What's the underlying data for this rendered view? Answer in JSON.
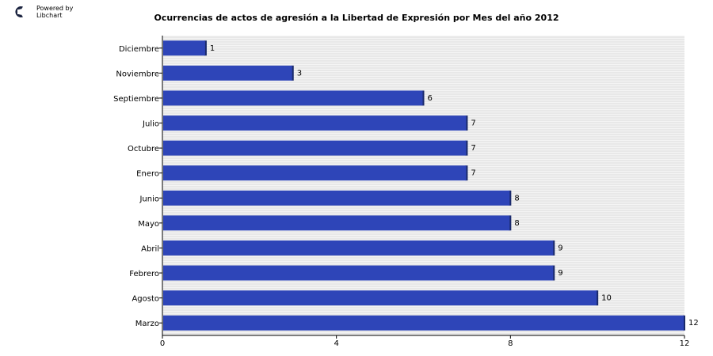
{
  "branding": {
    "line1": "Powered by",
    "line2": "Libchart",
    "logo_icon": "libchart-logo-icon"
  },
  "chart_data": {
    "type": "bar",
    "orientation": "horizontal",
    "title": "Ocurrencias de actos de agresión a la Libertad de Expresión por Mes del año 2012",
    "categories": [
      "Diciembre",
      "Noviembre",
      "Septiembre",
      "Julio",
      "Octubre",
      "Enero",
      "Junio",
      "Mayo",
      "Abril",
      "Febrero",
      "Agosto",
      "Marzo"
    ],
    "values": [
      1,
      3,
      6,
      7,
      7,
      7,
      8,
      8,
      9,
      9,
      10,
      12
    ],
    "xlim": [
      0,
      12
    ],
    "xticks": [
      0,
      4,
      8,
      12
    ],
    "grid": true,
    "bar_color": "#2e45b8",
    "bar_shadow_color": "#1a2a6b"
  }
}
